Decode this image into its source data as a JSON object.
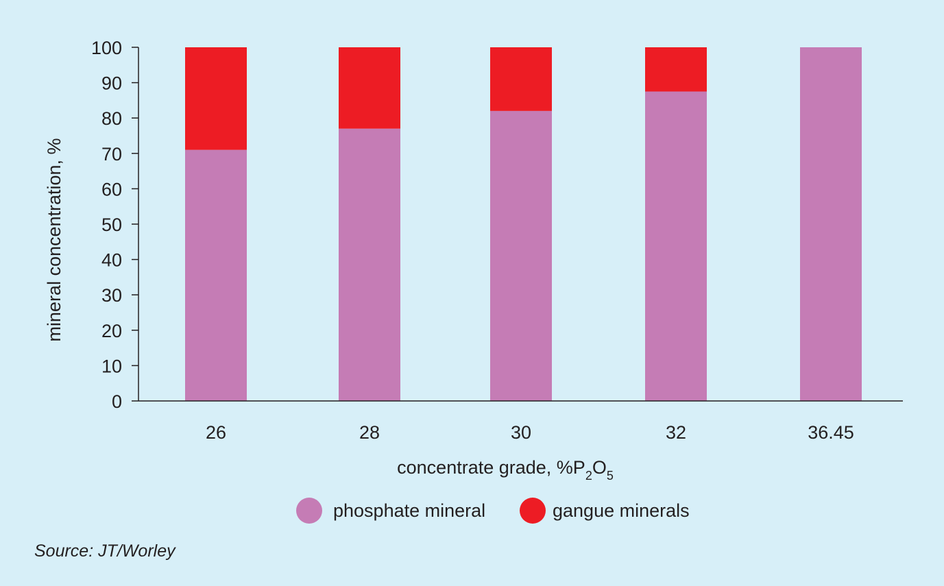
{
  "chart_data": {
    "type": "bar",
    "stacked": true,
    "categories": [
      "26",
      "28",
      "30",
      "32",
      "36.45"
    ],
    "series": [
      {
        "name": "phosphate mineral",
        "color": "#c57cb5",
        "values": [
          71,
          77,
          82,
          87.5,
          100
        ]
      },
      {
        "name": "gangue minerals",
        "color": "#ed1c24",
        "values": [
          29,
          23,
          18,
          12.5,
          0
        ]
      }
    ],
    "xlabel_main": "concentrate grade, %P",
    "xlabel_sub1": "2",
    "xlabel_mid": "O",
    "xlabel_sub2": "5",
    "ylabel": "mineral concentration, %",
    "ylim": [
      0,
      100
    ],
    "yticks": [
      0,
      10,
      20,
      30,
      40,
      50,
      60,
      70,
      80,
      90,
      100
    ],
    "grid": false,
    "legend_position": "bottom-center"
  },
  "source": "Source: JT/Worley",
  "colors": {
    "background": "#d7eff8",
    "axis": "#231f20"
  }
}
